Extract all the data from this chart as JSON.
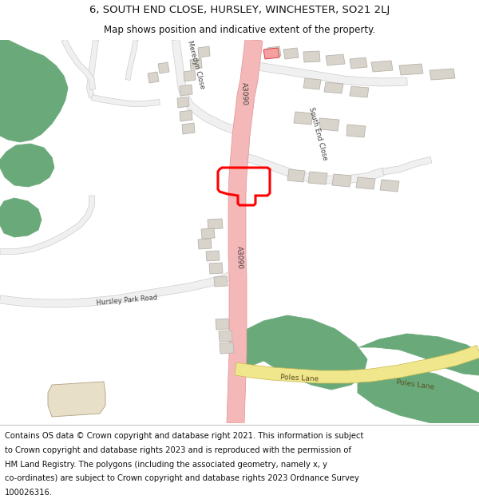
{
  "title_line1": "6, SOUTH END CLOSE, HURSLEY, WINCHESTER, SO21 2LJ",
  "title_line2": "Map shows position and indicative extent of the property.",
  "footer_lines": [
    "Contains OS data © Crown copyright and database right 2021. This information is subject",
    "to Crown copyright and database rights 2023 and is reproduced with the permission of",
    "HM Land Registry. The polygons (including the associated geometry, namely x, y",
    "co-ordinates) are subject to Crown copyright and database rights 2023 Ordnance Survey",
    "100026316."
  ],
  "bg_color": "#ffffff",
  "green_color": "#6aaa7a",
  "road_pink_color": "#f5b8b8",
  "road_yellow_color": "#f0e68c",
  "road_white_color": "#f0f0f0",
  "building_color": "#d8d4cc",
  "building_edge_color": "#b8b4ac",
  "plot_line_color": "#ff0000",
  "label_color": "#404040",
  "beige_color": "#e8dfc8",
  "title_fontsize": 9.5,
  "subtitle_fontsize": 8.5,
  "footer_fontsize": 7.2,
  "label_fontsize": 6.0,
  "road_label_fontsize": 6.5
}
